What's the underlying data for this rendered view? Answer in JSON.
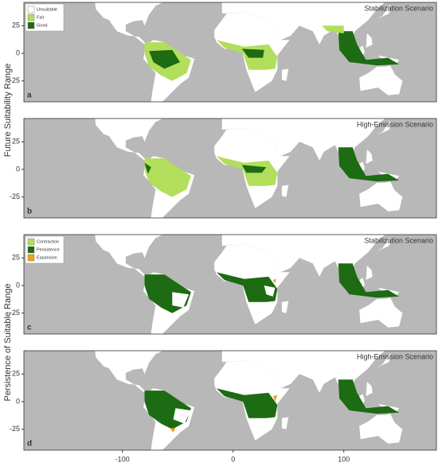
{
  "y_axis_labels": [
    "Future Suitability Range",
    "Persistence of Suitable Range"
  ],
  "panels": [
    {
      "label": "a",
      "title": "Stabilization Scenario",
      "legend": [
        {
          "label": "Unsuitable",
          "color": "#ffffff"
        },
        {
          "label": "Fair",
          "color": "#b2de5c"
        },
        {
          "label": "Good",
          "color": "#1d6b12"
        }
      ]
    },
    {
      "label": "b",
      "title": "High-Emission Scenario"
    },
    {
      "label": "c",
      "title": "Stabilization Scenario",
      "legend": [
        {
          "label": "Contraction",
          "color": "#b2de5c"
        },
        {
          "label": "Persistence",
          "color": "#1d6b12"
        },
        {
          "label": "Expansion",
          "color": "#f0a020"
        }
      ]
    },
    {
      "label": "d",
      "title": "High-Emission Scenario"
    }
  ],
  "yticks": [
    25,
    0,
    -25
  ],
  "xticks": [
    -100,
    0,
    100
  ]
}
